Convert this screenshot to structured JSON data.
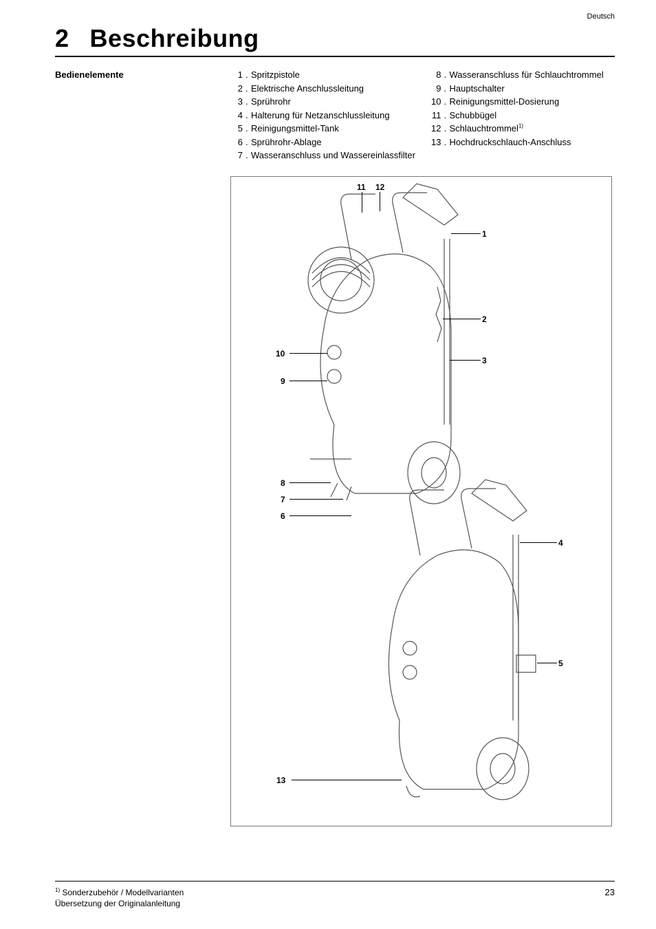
{
  "language_label": "Deutsch",
  "chapter": {
    "number": "2",
    "title": "Beschreibung"
  },
  "section_label": "Bedienelemente",
  "items_left": [
    {
      "n": "1.",
      "t": "Spritzpistole"
    },
    {
      "n": "2.",
      "t": "Elektrische Anschlussleitung"
    },
    {
      "n": "3.",
      "t": "Sprührohr"
    },
    {
      "n": "4.",
      "t": "Halterung für Netzanschluss­leitung"
    },
    {
      "n": "5.",
      "t": "Reinigungsmittel-Tank"
    },
    {
      "n": "6.",
      "t": "Sprührohr-Ablage"
    },
    {
      "n": "7.",
      "t": "Wasseranschluss und Wassereinlassfilter"
    }
  ],
  "items_right": [
    {
      "n": "8.",
      "t": "Wasseranschluss für Schlauchtrommel"
    },
    {
      "n": "9.",
      "t": "Hauptschalter"
    },
    {
      "n": "10.",
      "t": "Reinigungsmittel-Dosierung"
    },
    {
      "n": "11.",
      "t": "Schubbügel"
    },
    {
      "n": "12.",
      "t": "Schlauchtrommel",
      "sup": "1)"
    },
    {
      "n": "13.",
      "t": "Hochdruckschlauch-An­schluss"
    }
  ],
  "callouts": {
    "c1": "1",
    "c2": "2",
    "c3": "3",
    "c4": "4",
    "c5": "5",
    "c6": "6",
    "c7": "7",
    "c8": "8",
    "c9": "9",
    "c10": "10",
    "c11": "11",
    "c12": "12",
    "c13": "13"
  },
  "footnote": {
    "sup": "1)",
    "text": " Sonderzubehör / Modellvarianten"
  },
  "footer_line2": "Übersetzung der Originalanleitung",
  "page_number": "23"
}
